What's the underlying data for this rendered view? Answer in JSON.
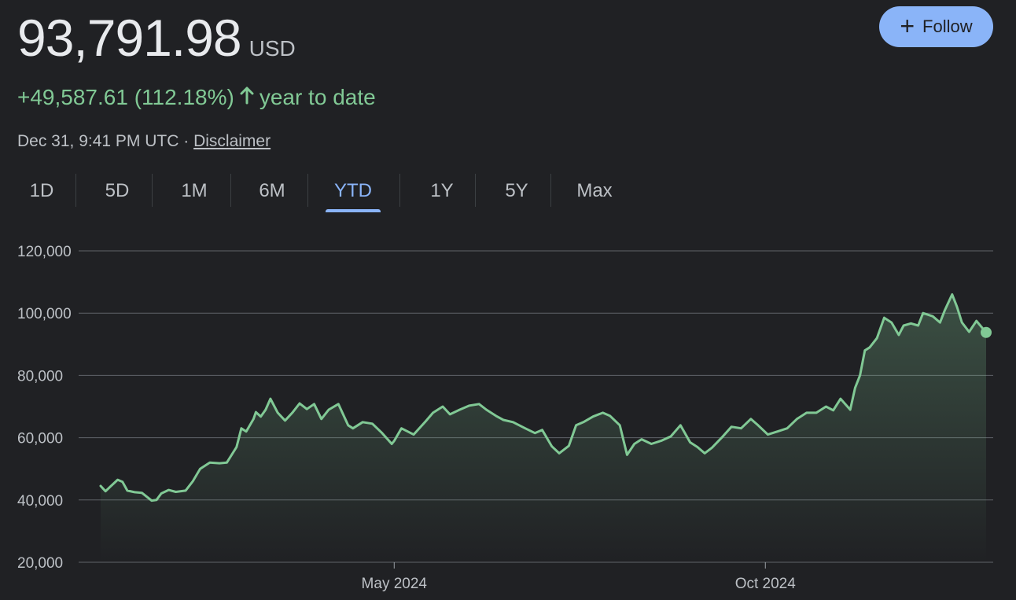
{
  "quote": {
    "price": "93,791.98",
    "currency": "USD",
    "change": "+49,587.61 (112.18%)",
    "change_suffix": "year to date",
    "timestamp": "Dec 31, 9:41 PM UTC",
    "separator": "·",
    "disclaimer": "Disclaimer",
    "up_arrow_icon": "arrow-up-icon",
    "positive_color": "#81c995"
  },
  "follow": {
    "label": "Follow",
    "icon": "plus-icon",
    "color": "#8ab4f8"
  },
  "tabs": [
    {
      "label": "1D",
      "active": false
    },
    {
      "label": "5D",
      "active": false
    },
    {
      "label": "1M",
      "active": false
    },
    {
      "label": "6M",
      "active": false
    },
    {
      "label": "YTD",
      "active": true
    },
    {
      "label": "1Y",
      "active": false
    },
    {
      "label": "5Y",
      "active": false
    },
    {
      "label": "Max",
      "active": false
    }
  ],
  "chart_data": {
    "type": "area",
    "title": "",
    "xlabel": "",
    "ylabel": "",
    "ylim": [
      20000,
      120000
    ],
    "y_ticks": [
      20000,
      40000,
      60000,
      80000,
      100000,
      120000
    ],
    "y_tick_labels": [
      "20,000",
      "40,000",
      "60,000",
      "80,000",
      "100,000",
      "120,000"
    ],
    "xlim": [
      "2024-01-01",
      "2024-12-31"
    ],
    "x_ticks": [
      "2024-05-01",
      "2024-10-01"
    ],
    "x_tick_labels": [
      "May 2024",
      "Oct 2024"
    ],
    "grid": true,
    "line_color": "#81c995",
    "series": [
      {
        "x": [
          "2024-01-01",
          "2024-01-03",
          "2024-01-05",
          "2024-01-08",
          "2024-01-10",
          "2024-01-12",
          "2024-01-15",
          "2024-01-18",
          "2024-01-22",
          "2024-01-24",
          "2024-01-26",
          "2024-01-29",
          "2024-02-01",
          "2024-02-05",
          "2024-02-08",
          "2024-02-11",
          "2024-02-15",
          "2024-02-19",
          "2024-02-22",
          "2024-02-26",
          "2024-02-28",
          "2024-03-01",
          "2024-03-04",
          "2024-03-05",
          "2024-03-07",
          "2024-03-09",
          "2024-03-11",
          "2024-03-14",
          "2024-03-17",
          "2024-03-20",
          "2024-03-23",
          "2024-03-26",
          "2024-03-29",
          "2024-04-01",
          "2024-04-04",
          "2024-04-08",
          "2024-04-12",
          "2024-04-14",
          "2024-04-18",
          "2024-04-22",
          "2024-04-26",
          "2024-04-30",
          "2024-05-01",
          "2024-05-04",
          "2024-05-09",
          "2024-05-14",
          "2024-05-17",
          "2024-05-21",
          "2024-05-24",
          "2024-05-28",
          "2024-06-01",
          "2024-06-05",
          "2024-06-08",
          "2024-06-12",
          "2024-06-15",
          "2024-06-19",
          "2024-06-24",
          "2024-06-28",
          "2024-07-01",
          "2024-07-05",
          "2024-07-08",
          "2024-07-12",
          "2024-07-15",
          "2024-07-18",
          "2024-07-22",
          "2024-07-26",
          "2024-07-29",
          "2024-08-02",
          "2024-08-05",
          "2024-08-08",
          "2024-08-11",
          "2024-08-15",
          "2024-08-19",
          "2024-08-23",
          "2024-08-27",
          "2024-08-31",
          "2024-09-03",
          "2024-09-06",
          "2024-09-09",
          "2024-09-13",
          "2024-09-17",
          "2024-09-21",
          "2024-09-25",
          "2024-09-28",
          "2024-10-02",
          "2024-10-06",
          "2024-10-10",
          "2024-10-14",
          "2024-10-18",
          "2024-10-22",
          "2024-10-26",
          "2024-10-29",
          "2024-11-01",
          "2024-11-05",
          "2024-11-07",
          "2024-11-09",
          "2024-11-11",
          "2024-11-13",
          "2024-11-16",
          "2024-11-19",
          "2024-11-22",
          "2024-11-25",
          "2024-11-27",
          "2024-11-30",
          "2024-12-03",
          "2024-12-05",
          "2024-12-09",
          "2024-12-12",
          "2024-12-14",
          "2024-12-17",
          "2024-12-19",
          "2024-12-21",
          "2024-12-24",
          "2024-12-27",
          "2024-12-31"
        ],
        "values": [
          44500,
          42800,
          44300,
          46500,
          45800,
          43000,
          42500,
          42300,
          39800,
          40000,
          42100,
          43200,
          42600,
          43000,
          46000,
          50000,
          52000,
          51800,
          52000,
          57000,
          63000,
          62000,
          66000,
          68200,
          66800,
          69000,
          72500,
          68000,
          65500,
          68000,
          71000,
          69200,
          70800,
          66000,
          69000,
          70800,
          64000,
          63000,
          65000,
          64500,
          61500,
          58000,
          59000,
          63000,
          61000,
          65300,
          68000,
          70000,
          67500,
          69000,
          70300,
          70800,
          69000,
          67000,
          65700,
          65000,
          63000,
          61500,
          62500,
          57200,
          55000,
          57400,
          64000,
          65000,
          66800,
          68000,
          67000,
          64000,
          54500,
          58000,
          59500,
          58000,
          59000,
          60400,
          64000,
          58500,
          57000,
          55000,
          56800,
          60000,
          63500,
          63000,
          66000,
          64000,
          61000,
          62000,
          63000,
          66000,
          68000,
          68000,
          70000,
          68800,
          72500,
          69000,
          76000,
          80000,
          88000,
          89000,
          92000,
          98500,
          97000,
          93000,
          96000,
          96700,
          96000,
          100000,
          99000,
          97000,
          101000,
          106000,
          102000,
          97000,
          94000,
          97500,
          93800
        ]
      }
    ]
  }
}
